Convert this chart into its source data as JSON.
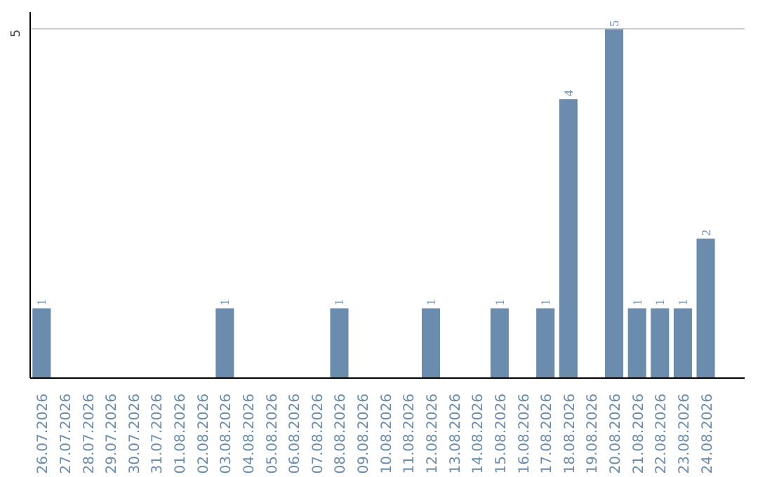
{
  "chart_data": {
    "type": "bar",
    "categories": [
      "26.07.2026",
      "27.07.2026",
      "28.07.2026",
      "29.07.2026",
      "30.07.2026",
      "31.07.2026",
      "01.08.2026",
      "02.08.2026",
      "03.08.2026",
      "04.08.2026",
      "05.08.2026",
      "06.08.2026",
      "07.08.2026",
      "08.08.2026",
      "09.08.2026",
      "10.08.2026",
      "11.08.2026",
      "12.08.2026",
      "13.08.2026",
      "14.08.2026",
      "15.08.2026",
      "16.08.2026",
      "17.08.2026",
      "18.08.2026",
      "19.08.2026",
      "20.08.2026",
      "21.08.2026",
      "22.08.2026",
      "23.08.2026",
      "24.08.2026"
    ],
    "values": [
      1,
      null,
      null,
      null,
      null,
      null,
      null,
      null,
      1,
      null,
      null,
      null,
      null,
      1,
      null,
      null,
      null,
      1,
      null,
      null,
      1,
      null,
      1,
      4,
      null,
      5,
      1,
      1,
      1,
      2
    ],
    "color": "#6b8cad",
    "ylim": [
      0,
      5.25
    ],
    "yticks": [
      5
    ],
    "grid": "y",
    "data_labels": true
  }
}
